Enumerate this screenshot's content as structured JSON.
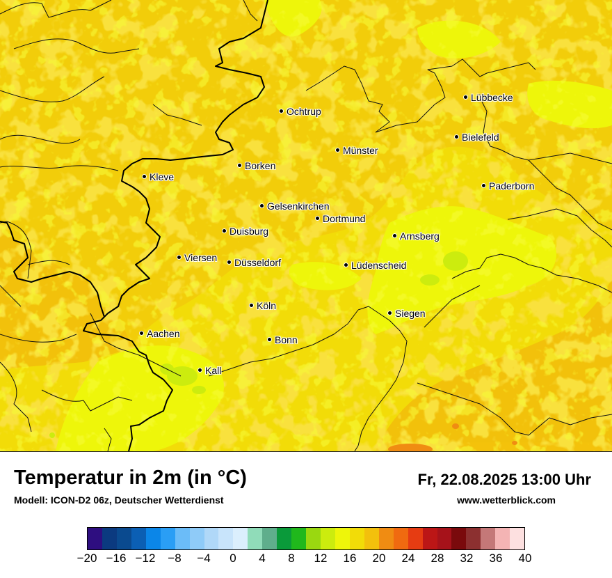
{
  "map": {
    "cities": [
      {
        "name": "Lübbecke"
      },
      {
        "name": "Ochtrup"
      },
      {
        "name": "Bielefeld"
      },
      {
        "name": "Münster"
      },
      {
        "name": "Borken"
      },
      {
        "name": "Kleve"
      },
      {
        "name": "Paderborn"
      },
      {
        "name": "Gelsenkirchen"
      },
      {
        "name": "Dortmund"
      },
      {
        "name": "Duisburg"
      },
      {
        "name": "Arnsberg"
      },
      {
        "name": "Viersen"
      },
      {
        "name": "Düsseldorf"
      },
      {
        "name": "Lüdenscheid"
      },
      {
        "name": "Köln"
      },
      {
        "name": "Siegen"
      },
      {
        "name": "Aachen"
      },
      {
        "name": "Bonn"
      },
      {
        "name": "Kall"
      }
    ]
  },
  "footer": {
    "title": "Temperatur in 2m (in °C)",
    "model": "Modell: ICON-D2 06z, Deutscher Wetterdienst",
    "datetime": "Fr, 22.08.2025 13:00 Uhr",
    "website": "www.wetterblick.com"
  },
  "colorbar": {
    "colors": [
      "#2e0e80",
      "#0b3a80",
      "#0a4a8f",
      "#0b5fb4",
      "#0b86e8",
      "#2a9ef5",
      "#6bbcf8",
      "#8fcbf8",
      "#b0d8f8",
      "#c8e4fb",
      "#dbeffd",
      "#90dcb9",
      "#5fae8c",
      "#0a9a3a",
      "#20b81c",
      "#9ad810",
      "#ccec0e",
      "#eef60a",
      "#f2dc08",
      "#f3c00c",
      "#f08c12",
      "#f06a10",
      "#e63c12",
      "#bc1616",
      "#a6121a",
      "#7a0a0c",
      "#8c3030",
      "#c47878",
      "#f4b4b4",
      "#fde0e0"
    ],
    "ticks": [
      "−20",
      "−16",
      "−12",
      "−8",
      "−4",
      "0",
      "4",
      "8",
      "12",
      "16",
      "20",
      "24",
      "28",
      "32",
      "36",
      "40"
    ]
  }
}
